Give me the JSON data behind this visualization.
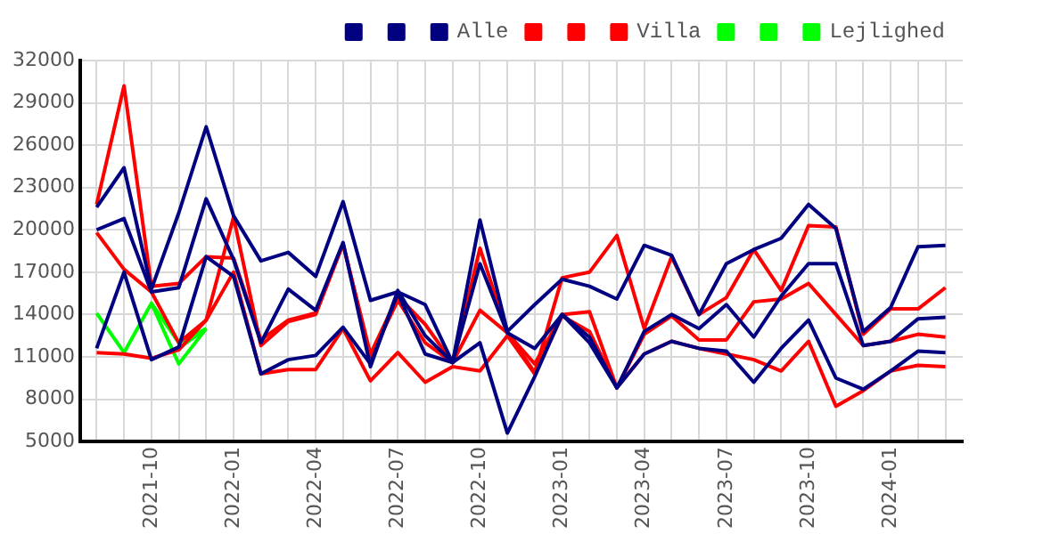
{
  "chart_data": {
    "type": "line",
    "legend": "top right",
    "grid": true,
    "marker": "none",
    "line_style": "solid",
    "x": [
      "2021-08",
      "2021-09",
      "2021-10",
      "2021-11",
      "2021-12",
      "2022-01",
      "2022-02",
      "2022-03",
      "2022-04",
      "2022-05",
      "2022-06",
      "2022-07",
      "2022-08",
      "2022-09",
      "2022-10",
      "2022-11",
      "2022-12",
      "2023-01",
      "2023-02",
      "2023-03",
      "2023-04",
      "2023-05",
      "2023-06",
      "2023-07",
      "2023-08",
      "2023-09",
      "2023-10",
      "2023-11",
      "2023-12",
      "2024-01",
      "2024-02",
      "2024-03"
    ],
    "xlim": [
      "2021-07-13",
      "2024-03-20"
    ],
    "xticks": [
      {
        "value": "2021-08",
        "label": null
      },
      {
        "value": "2021-09",
        "label": null
      },
      "2021-10",
      {
        "value": "2021-11",
        "label": null
      },
      {
        "value": "2021-12",
        "label": null
      },
      "2022-01",
      {
        "value": "2022-02",
        "label": null
      },
      {
        "value": "2022-03",
        "label": null
      },
      "2022-04",
      {
        "value": "2022-05",
        "label": null
      },
      {
        "value": "2022-06",
        "label": null
      },
      "2022-07",
      {
        "value": "2022-08",
        "label": null
      },
      {
        "value": "2022-09",
        "label": null
      },
      "2022-10",
      {
        "value": "2022-11",
        "label": null
      },
      {
        "value": "2022-12",
        "label": null
      },
      "2023-01",
      {
        "value": "2023-02",
        "label": null
      },
      {
        "value": "2023-03",
        "label": null
      },
      "2023-04",
      {
        "value": "2023-05",
        "label": null
      },
      {
        "value": "2023-06",
        "label": null
      },
      "2023-07",
      {
        "value": "2023-08",
        "label": null
      },
      {
        "value": "2023-09",
        "label": null
      },
      "2023-10",
      {
        "value": "2023-11",
        "label": null
      },
      {
        "value": "2023-12",
        "label": null
      },
      "2024-01",
      {
        "value": "2024-02",
        "label": null
      },
      {
        "value": "2024-03",
        "label": null
      }
    ],
    "ylim": [
      5000,
      32000
    ],
    "yticks": [
      5000,
      8000,
      11000,
      14000,
      17000,
      20000,
      23000,
      26000,
      29000,
      32000
    ],
    "series": [
      {
        "color": "#000080",
        "values": [
          11600,
          17000,
          10800,
          11700,
          18100,
          16700,
          9800,
          10800,
          11100,
          13100,
          10500,
          15500,
          11200,
          10600,
          12000,
          5600,
          9600,
          14000,
          12000,
          8800,
          11200,
          12100,
          11600,
          11400,
          9200,
          11600,
          13600,
          9500,
          8700,
          10000,
          11400,
          11300
        ]
      },
      {
        "color": "#000080",
        "values": [
          20000,
          20800,
          15600,
          15900,
          22200,
          17900,
          12000,
          15800,
          14300,
          19100,
          10300,
          15700,
          12500,
          10600,
          17600,
          12700,
          11600,
          14000,
          12400,
          8800,
          12800,
          14000,
          13000,
          14700,
          12400,
          15300,
          17600,
          17600,
          11800,
          12100,
          13700,
          13800
        ]
      },
      {
        "name": "Alle",
        "color": "#000080",
        "values": [
          21600,
          24400,
          15800,
          21200,
          27300,
          21000,
          17800,
          18400,
          16700,
          22000,
          15000,
          15600,
          14700,
          10600,
          20700,
          12800,
          14700,
          16500,
          16000,
          15100,
          18900,
          18200,
          14000,
          17600,
          18600,
          19400,
          21800,
          20100,
          12800,
          14500,
          18800,
          18900
        ]
      },
      {
        "color": "#ff0000",
        "values": [
          11300,
          11200,
          10900,
          11500,
          13600,
          17000,
          9800,
          10100,
          10100,
          13000,
          9300,
          11300,
          9200,
          10300,
          10000,
          12500,
          9800,
          13900,
          12800,
          8800,
          11200,
          12100,
          11600,
          11200,
          10800,
          10000,
          12100,
          7500,
          8600,
          10000,
          10400,
          10300
        ]
      },
      {
        "color": "#ff0000",
        "values": [
          19800,
          17200,
          15600,
          12000,
          13600,
          20900,
          11800,
          13500,
          14000,
          19000,
          11000,
          15000,
          12000,
          10600,
          14300,
          12700,
          10500,
          14000,
          14200,
          8800,
          12600,
          13900,
          12200,
          12200,
          14900,
          15100,
          16200,
          14000,
          11800,
          12100,
          12600,
          12400
        ]
      },
      {
        "name": "Villa",
        "color": "#ff0000",
        "values": [
          21800,
          30200,
          16000,
          16200,
          18100,
          18000,
          12200,
          13600,
          14100,
          19000,
          11200,
          15300,
          13300,
          10600,
          18700,
          12700,
          9900,
          16600,
          17000,
          19600,
          13000,
          18100,
          14000,
          15200,
          18600,
          15700,
          20300,
          20200,
          12600,
          14400,
          14400,
          15900
        ]
      },
      {
        "color": "#00ff00",
        "x": [
          "2021-10",
          "2021-11",
          "2021-12"
        ],
        "values": [
          14800,
          12000,
          13000
        ]
      },
      {
        "color": "#00ff00",
        "x": [
          "2021-11",
          "2021-12"
        ],
        "values": [
          11600,
          13000
        ]
      },
      {
        "name": "Lejlighed",
        "color": "#00ff00",
        "x": [
          "2021-08",
          "2021-09",
          "2021-10",
          "2021-11",
          "2021-12"
        ],
        "values": [
          14100,
          11300,
          14800,
          10500,
          13000
        ]
      }
    ]
  }
}
